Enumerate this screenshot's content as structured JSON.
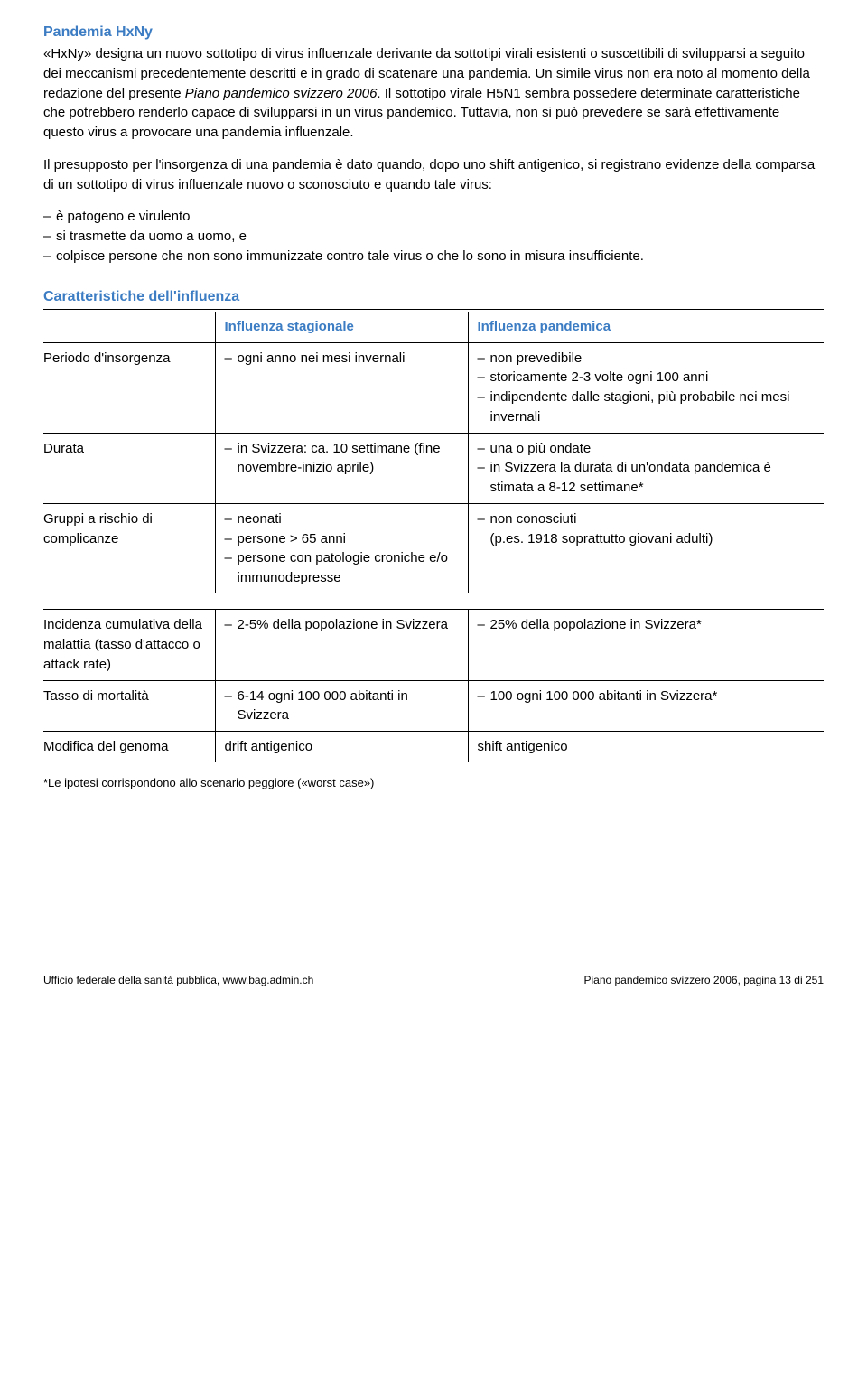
{
  "title1": "Pandemia HxNy",
  "para1a": "«HxNy» designa un nuovo sottotipo di virus influenzale derivante da sottotipi virali esistenti o suscettibili di svilupparsi a seguito dei meccanismi precedentemente descritti e in grado di scatenare una pandemia. Un simile virus non era noto al momento della redazione del presente ",
  "para1b": "Piano pandemico svizzero 2006",
  "para1c": ". Il sottotipo virale H5N1 sembra possedere determinate caratteristiche che potrebbero renderlo capace di svilupparsi in un virus pandemico. Tuttavia, non si può prevedere se sarà effettivamente questo virus a provocare una pandemia influenzale.",
  "para2": "Il presupposto per l'insorgenza di una pandemia è dato quando, dopo uno shift antigenico, si registrano evidenze della comparsa di un sottotipo di virus influenzale nuovo o sconosciuto e quando tale virus:",
  "bullets": [
    "è patogeno e virulento",
    "si trasmette da uomo a uomo, e",
    "colpisce persone che non sono immunizzate contro tale virus o che lo sono in misura insufficiente."
  ],
  "title2": "Caratteristiche dell'influenza",
  "table": {
    "headers": [
      "",
      "Influenza stagionale",
      "Influenza pandemica"
    ],
    "rows1": [
      {
        "label": "Periodo d'insorgenza",
        "c2": [
          "ogni anno nei mesi invernali"
        ],
        "c3": [
          "non prevedibile",
          "storicamente 2-3 volte ogni 100 anni",
          "indipendente dalle stagioni, più probabile nei mesi invernali"
        ]
      },
      {
        "label": "Durata",
        "c2": [
          "in Svizzera: ca. 10 settimane (fine novembre-inizio aprile)"
        ],
        "c3": [
          "una o più ondate",
          "in Svizzera la durata di un'ondata pandemica è stimata a 8-12 settimane*"
        ]
      },
      {
        "label": "Gruppi a rischio di complicanze",
        "c2": [
          "neonati",
          "persone > 65 anni",
          "persone con patologie croniche e/o immunodepresse"
        ],
        "c3": [
          "non conosciuti",
          "(p.es. 1918 soprattutto giovani adulti)"
        ],
        "c3indent": [
          false,
          true
        ]
      }
    ],
    "rows2": [
      {
        "label": "Incidenza cumulativa della malattia (tasso d'attacco o attack rate)",
        "c2": [
          "2-5% della popolazione in Svizzera"
        ],
        "c3": [
          "25% della popolazione in Svizzera*"
        ]
      },
      {
        "label": "Tasso di mortalità",
        "c2": [
          "6-14 ogni 100 000 abitanti in Svizzera"
        ],
        "c3": [
          "100 ogni 100 000 abitanti in Svizzera*"
        ]
      },
      {
        "label": "Modifica del genoma",
        "c2plain": "drift antigenico",
        "c3plain": "shift antigenico"
      }
    ]
  },
  "footnote": "*Le ipotesi corrispondono allo scenario peggiore («worst case»)",
  "footer_left": "Ufficio federale della sanità pubblica, www.bag.admin.ch",
  "footer_right": "Piano pandemico svizzero 2006, pagina 13 di 251"
}
